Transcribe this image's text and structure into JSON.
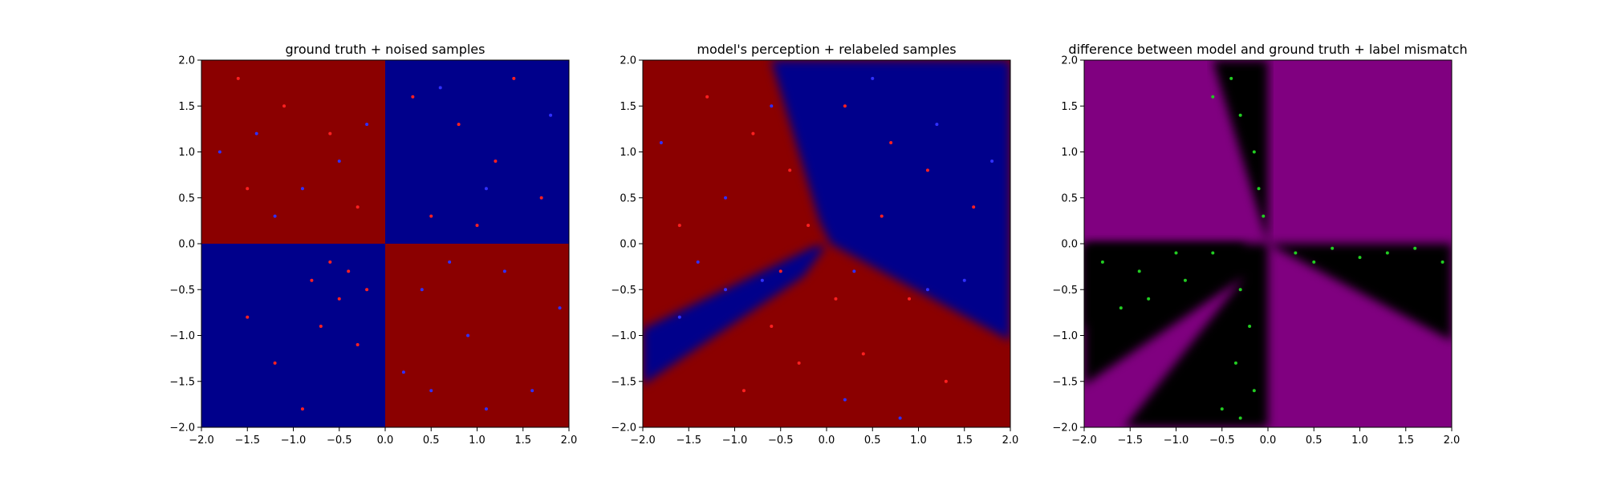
{
  "chart_data": [
    {
      "type": "scatter",
      "title": "ground truth + noised samples",
      "xlabel": "",
      "ylabel": "",
      "xlim": [
        -2.0,
        2.0
      ],
      "ylim": [
        -2.0,
        2.0
      ],
      "xticks": [
        "−2.0",
        "−1.5",
        "−1.0",
        "−0.5",
        "0.0",
        "0.5",
        "1.0",
        "1.5",
        "2.0"
      ],
      "yticks": [
        "−2.0",
        "−1.5",
        "−1.0",
        "−0.5",
        "0.0",
        "0.5",
        "1.0",
        "1.5",
        "2.0"
      ],
      "background": "ground-truth quadrants: red where x*y>0, blue where x*y<0",
      "colors": {
        "red_region": "#8b0000",
        "blue_region": "#00008b",
        "red_points": "#ff2020",
        "blue_points": "#3030ff"
      },
      "series": [
        {
          "color": "red",
          "points": [
            [
              -1.6,
              1.8
            ],
            [
              -1.1,
              1.5
            ],
            [
              -0.6,
              1.2
            ],
            [
              -1.5,
              0.6
            ],
            [
              -0.3,
              0.4
            ],
            [
              0.3,
              1.6
            ],
            [
              0.8,
              1.3
            ],
            [
              1.2,
              0.9
            ],
            [
              1.7,
              0.5
            ],
            [
              0.5,
              0.3
            ],
            [
              1.0,
              0.2
            ],
            [
              1.4,
              1.8
            ],
            [
              -0.8,
              -0.4
            ],
            [
              -0.5,
              -0.6
            ],
            [
              -0.4,
              -0.3
            ],
            [
              -0.7,
              -0.9
            ],
            [
              -1.2,
              -1.3
            ],
            [
              -0.3,
              -1.1
            ],
            [
              -0.9,
              -1.8
            ],
            [
              -1.5,
              -0.8
            ],
            [
              -0.2,
              -0.5
            ],
            [
              -0.6,
              -0.2
            ]
          ]
        },
        {
          "color": "blue",
          "points": [
            [
              -1.8,
              1.0
            ],
            [
              -1.2,
              0.3
            ],
            [
              -0.5,
              0.9
            ],
            [
              -0.9,
              0.6
            ],
            [
              -0.2,
              1.3
            ],
            [
              -1.4,
              1.2
            ],
            [
              0.6,
              1.7
            ],
            [
              1.1,
              0.6
            ],
            [
              1.8,
              1.4
            ],
            [
              0.4,
              -0.5
            ],
            [
              0.9,
              -1.0
            ],
            [
              1.3,
              -0.3
            ],
            [
              1.6,
              -1.6
            ],
            [
              0.2,
              -1.4
            ],
            [
              1.1,
              -1.8
            ],
            [
              0.7,
              -0.2
            ],
            [
              1.9,
              -0.7
            ],
            [
              0.5,
              -1.6
            ]
          ]
        }
      ]
    },
    {
      "type": "scatter",
      "title": "model's perception + relabeled samples",
      "xlabel": "",
      "ylabel": "",
      "xlim": [
        -2.0,
        2.0
      ],
      "ylim": [
        -2.0,
        2.0
      ],
      "xticks": [
        "−2.0",
        "−1.5",
        "−1.0",
        "−0.5",
        "0.0",
        "0.5",
        "1.0",
        "1.5",
        "2.0"
      ],
      "yticks": [
        "−2.0",
        "−1.5",
        "−1.0",
        "−0.5",
        "0.0",
        "0.5",
        "1.0",
        "1.5",
        "2.0"
      ],
      "background": "model decision regions: red on left/bottom wedge, blue on upper-right and lower-right wedge and a blue band in lower-left",
      "colors": {
        "red_region": "#8b0000",
        "blue_region": "#00008b",
        "red_points": "#ff2020",
        "blue_points": "#3030ff"
      },
      "series": [
        {
          "color": "red",
          "points": [
            [
              -1.3,
              1.6
            ],
            [
              -0.8,
              1.2
            ],
            [
              -0.4,
              0.8
            ],
            [
              -1.6,
              0.2
            ],
            [
              -0.2,
              0.2
            ],
            [
              0.2,
              1.5
            ],
            [
              0.7,
              1.1
            ],
            [
              1.1,
              0.8
            ],
            [
              1.6,
              0.4
            ],
            [
              0.6,
              0.3
            ],
            [
              -0.6,
              -0.9
            ],
            [
              -0.3,
              -1.3
            ],
            [
              0.1,
              -0.6
            ],
            [
              0.4,
              -1.2
            ],
            [
              0.9,
              -0.6
            ],
            [
              1.3,
              -1.5
            ],
            [
              -0.9,
              -1.6
            ],
            [
              -0.5,
              -0.3
            ]
          ]
        },
        {
          "color": "blue",
          "points": [
            [
              -1.8,
              1.1
            ],
            [
              -1.1,
              0.5
            ],
            [
              -0.6,
              1.5
            ],
            [
              -1.4,
              -0.2
            ],
            [
              -1.1,
              -0.5
            ],
            [
              -0.7,
              -0.4
            ],
            [
              -1.6,
              -0.8
            ],
            [
              0.5,
              1.8
            ],
            [
              1.2,
              1.3
            ],
            [
              1.8,
              0.9
            ],
            [
              1.5,
              -0.4
            ],
            [
              1.1,
              -0.5
            ],
            [
              0.3,
              -0.3
            ],
            [
              0.2,
              -1.7
            ],
            [
              0.8,
              -1.9
            ]
          ]
        }
      ]
    },
    {
      "type": "scatter",
      "title": "difference between model and ground truth + label mismatch",
      "xlabel": "",
      "ylabel": "",
      "xlim": [
        -2.0,
        2.0
      ],
      "ylim": [
        -2.0,
        2.0
      ],
      "xticks": [
        "−2.0",
        "−1.5",
        "−1.0",
        "−0.5",
        "0.0",
        "0.5",
        "1.0",
        "1.5",
        "2.0"
      ],
      "yticks": [
        "−2.0",
        "−1.5",
        "−1.0",
        "−0.5",
        "0.0",
        "0.5",
        "1.0",
        "1.5",
        "2.0"
      ],
      "background": "purple where model agrees with ground truth, black where it disagrees",
      "colors": {
        "agree_region": "#800080",
        "disagree_region": "#000000",
        "mismatch_points": "#22cc22"
      },
      "series": [
        {
          "color": "green",
          "points": [
            [
              -0.4,
              1.8
            ],
            [
              -0.3,
              1.4
            ],
            [
              -0.15,
              1.0
            ],
            [
              -0.1,
              0.6
            ],
            [
              -0.05,
              0.3
            ],
            [
              -0.6,
              1.6
            ],
            [
              -1.8,
              -0.2
            ],
            [
              -1.4,
              -0.3
            ],
            [
              -1.0,
              -0.1
            ],
            [
              -0.6,
              -0.1
            ],
            [
              -1.3,
              -0.6
            ],
            [
              -0.9,
              -0.4
            ],
            [
              -1.6,
              -0.7
            ],
            [
              -0.3,
              -0.5
            ],
            [
              -0.2,
              -0.9
            ],
            [
              -0.35,
              -1.3
            ],
            [
              -0.15,
              -1.6
            ],
            [
              -0.3,
              -1.9
            ],
            [
              -0.5,
              -1.8
            ],
            [
              0.3,
              -0.1
            ],
            [
              0.7,
              -0.05
            ],
            [
              1.0,
              -0.15
            ],
            [
              1.3,
              -0.1
            ],
            [
              1.6,
              -0.05
            ],
            [
              0.5,
              -0.2
            ],
            [
              1.9,
              -0.2
            ]
          ]
        }
      ]
    }
  ]
}
